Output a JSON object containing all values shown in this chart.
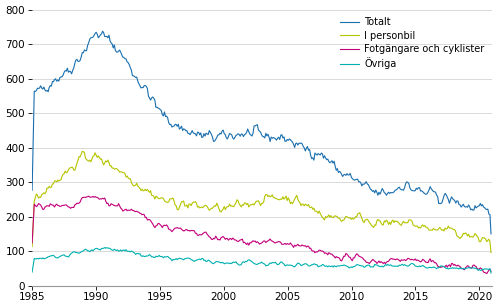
{
  "xlim": [
    1985.0,
    2021.0
  ],
  "ylim": [
    0,
    800
  ],
  "yticks": [
    0,
    100,
    200,
    300,
    400,
    500,
    600,
    700,
    800
  ],
  "xticks": [
    1985,
    1990,
    1995,
    2000,
    2005,
    2010,
    2015,
    2020
  ],
  "legend": [
    "Totalt",
    "I personbil",
    "Fotgängare och cyklister",
    "Övriga"
  ],
  "colors": [
    "#1a6faf",
    "#b5c400",
    "#c2007a",
    "#00b0b0"
  ],
  "linewidth": 0.8,
  "background": "#ffffff",
  "grid_color": "#cccccc"
}
